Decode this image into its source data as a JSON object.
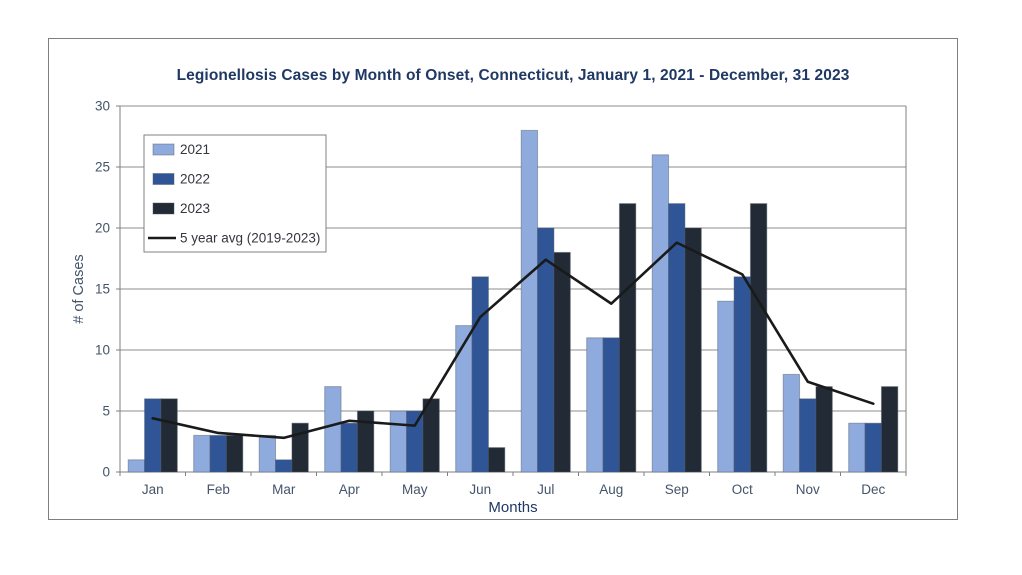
{
  "chart_data": {
    "type": "bar",
    "title": "Legionellosis Cases by Month of Onset, Connecticut, January 1, 2021 - December, 31 2023",
    "xlabel": "Months",
    "ylabel": "# of Cases",
    "ylim": [
      0,
      30
    ],
    "yticks": [
      0,
      5,
      10,
      15,
      20,
      25,
      30
    ],
    "grid": true,
    "legend_position": "inside-top-left",
    "categories": [
      "Jan",
      "Feb",
      "Mar",
      "Apr",
      "May",
      "Jun",
      "Jul",
      "Aug",
      "Sep",
      "Oct",
      "Nov",
      "Dec"
    ],
    "series": [
      {
        "name": "2021",
        "type": "bar",
        "color": "#8FAADC",
        "values": [
          1,
          3,
          3,
          7,
          5,
          12,
          28,
          11,
          26,
          14,
          8,
          4
        ]
      },
      {
        "name": "2022",
        "type": "bar",
        "color": "#2F5597",
        "values": [
          6,
          3,
          1,
          4,
          5,
          16,
          20,
          11,
          22,
          16,
          6,
          4
        ]
      },
      {
        "name": "2023",
        "type": "bar",
        "color": "#222A35",
        "values": [
          6,
          3,
          4,
          5,
          6,
          2,
          18,
          22,
          20,
          22,
          7,
          7
        ]
      },
      {
        "name": "5 year avg (2019-2023)",
        "type": "line",
        "color": "#1A1A1A",
        "values": [
          4.4,
          3.2,
          2.8,
          4.2,
          3.8,
          12.7,
          17.4,
          13.8,
          18.8,
          16.2,
          7.4,
          5.6
        ]
      }
    ],
    "colors": {
      "grid_line": "#8C8C8C",
      "axis_line": "#7F7F7F",
      "frame_border": "#7F7F7F",
      "bar_outline": "#4D5866",
      "title_text": "#1F3864",
      "tick_text": "#44546A",
      "axis_title_text": "#1F3864",
      "legend_text": "#33363D",
      "legend_border": "#808080",
      "background": "#FFFFFF"
    }
  }
}
